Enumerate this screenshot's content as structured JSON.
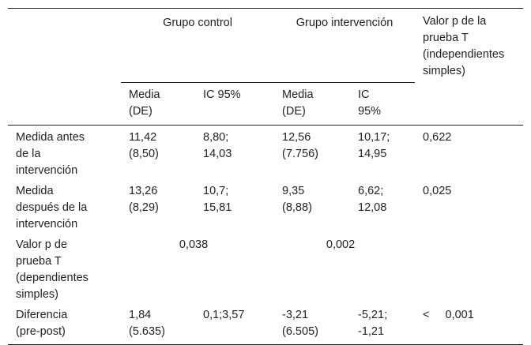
{
  "table": {
    "header": {
      "groups": [
        "Grupo control",
        "Grupo intervención"
      ],
      "p_value": "Valor p de la prueba T (independientes simples)",
      "subheaders": [
        "Media (DE)",
        "IC 95%",
        "Media (DE)",
        "IC 95%"
      ]
    },
    "rows": [
      [
        "Medida antes de la intervención",
        "11,42 (8,50)",
        "8,80; 14,03",
        "12,56 (7.756)",
        "10,17; 14,95",
        "0,622"
      ],
      [
        "Medida después de la intervención",
        "13,26 (8,29)",
        "10,7; 15,81",
        "9,35 (8,88)",
        "6,62; 12,08",
        "0,025"
      ],
      [
        "Valor p de prueba T (dependientes simples)",
        "0,038",
        "0,002"
      ],
      [
        "Diferencia (pre-post)",
        "1,84 (5.635)",
        "0,1;3,57",
        "-3,21 (6.505)",
        "-5,21; -1,21",
        "< 0,001"
      ]
    ]
  }
}
